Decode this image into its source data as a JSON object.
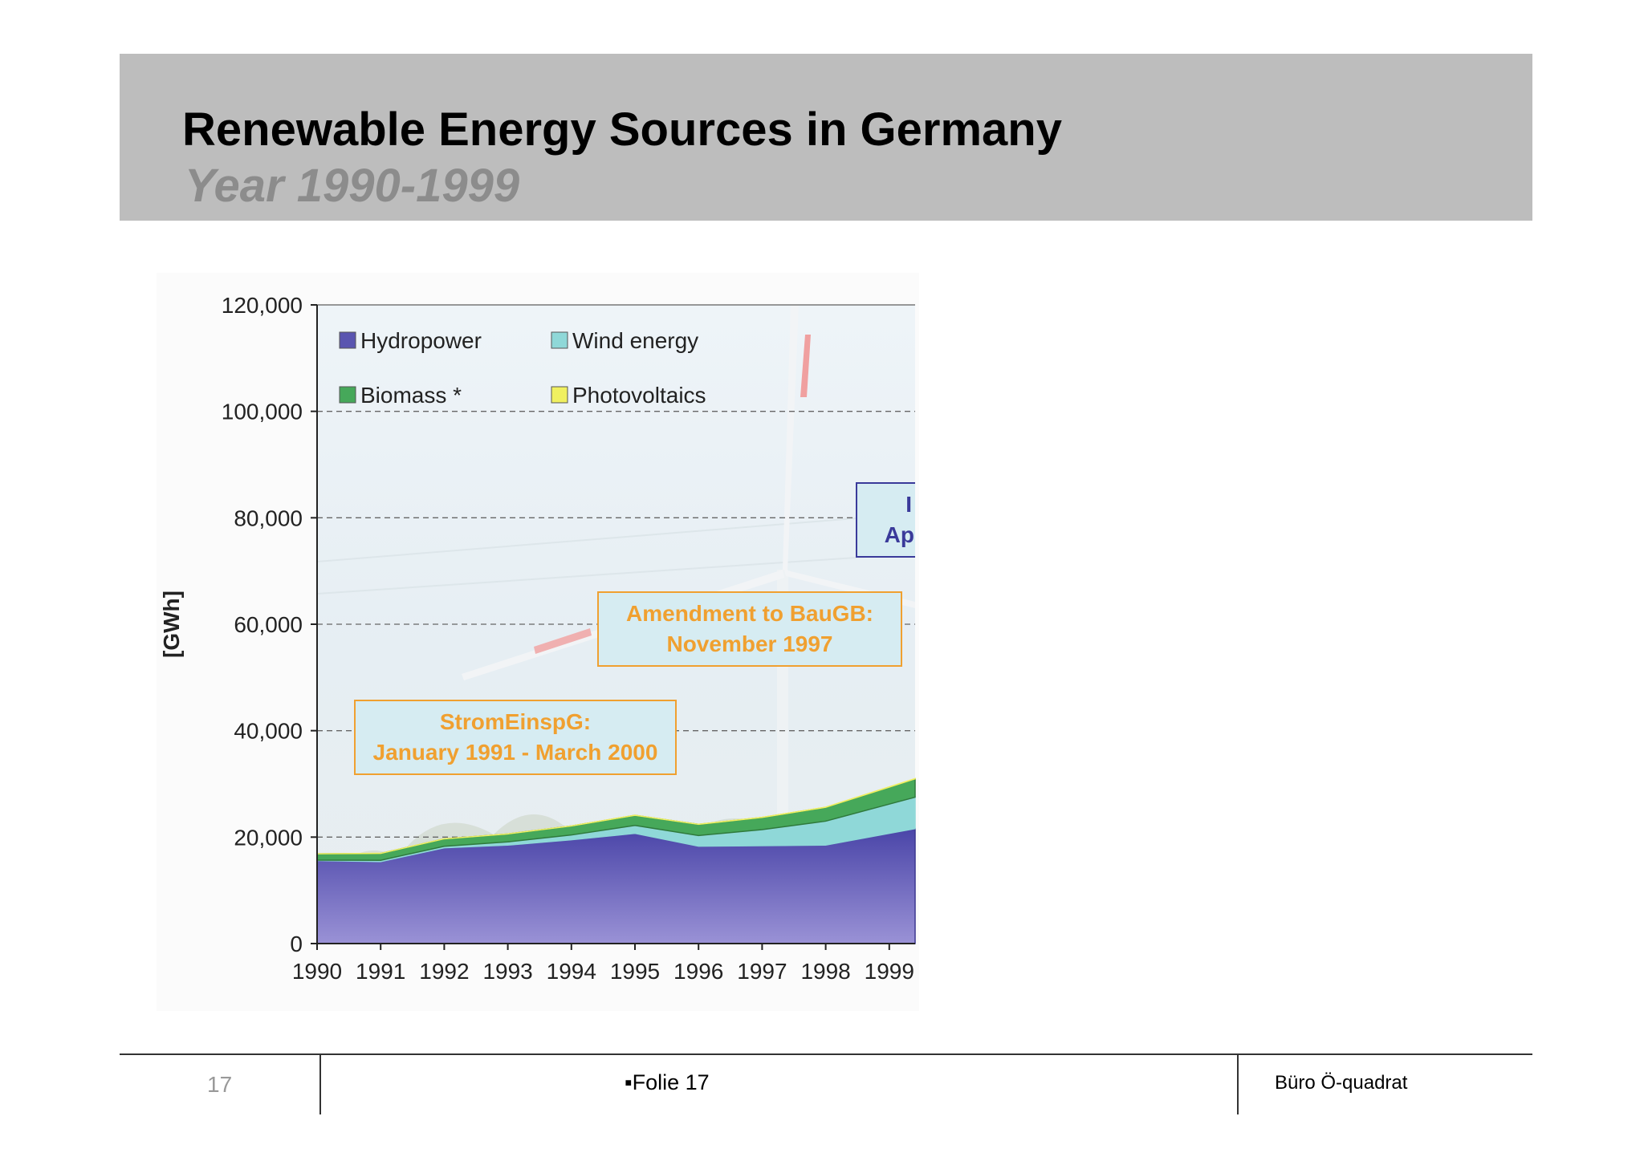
{
  "slide": {
    "title": "Renewable Energy Sources in Germany",
    "subtitle": "Year 1990-1999"
  },
  "footer": {
    "page_number": "17",
    "center_text": "▪Folie 17",
    "right_text": "Büro Ö-quadrat"
  },
  "chart_data": {
    "type": "area",
    "stacked": true,
    "x": [
      "1990",
      "1991",
      "1992",
      "1993",
      "1994",
      "1995",
      "1996",
      "1997",
      "1998",
      "1999"
    ],
    "ylabel": "[GWh]",
    "ylim": [
      0,
      120000
    ],
    "yticks": [
      0,
      20000,
      40000,
      60000,
      80000,
      100000,
      120000
    ],
    "ytick_labels": [
      "0",
      "20,000",
      "40,000",
      "60,000",
      "80,000",
      "100,000",
      "120,000"
    ],
    "grid": true,
    "legend_position": "top-left",
    "series": [
      {
        "name": "Hydropower",
        "color": "#5a55b0",
        "values": [
          15600,
          15400,
          18000,
          18500,
          19500,
          20700,
          18300,
          18400,
          18500,
          20700
        ]
      },
      {
        "name": "Wind energy",
        "color": "#8fd8d8",
        "values": [
          70,
          250,
          280,
          600,
          900,
          1500,
          2000,
          3000,
          4500,
          5500
        ]
      },
      {
        "name": "Biomass *",
        "color": "#46a85a",
        "values": [
          1200,
          1300,
          1400,
          1500,
          1700,
          1900,
          2100,
          2300,
          2600,
          3200
        ]
      },
      {
        "name": "Photovoltaics",
        "color": "#f0f060",
        "values": [
          1,
          2,
          3,
          6,
          8,
          11,
          16,
          26,
          32,
          42
        ]
      }
    ],
    "annotations": [
      {
        "text_lines": [
          "StromEinspG:",
          "January 1991 - March 2000"
        ],
        "color": "#f0a030"
      },
      {
        "text_lines": [
          "Amendment to BauGB:",
          "November 1997"
        ],
        "color": "#f0a030"
      },
      {
        "text_lines": [
          "I",
          "Ap"
        ],
        "color": "#3a3a9a"
      }
    ]
  }
}
